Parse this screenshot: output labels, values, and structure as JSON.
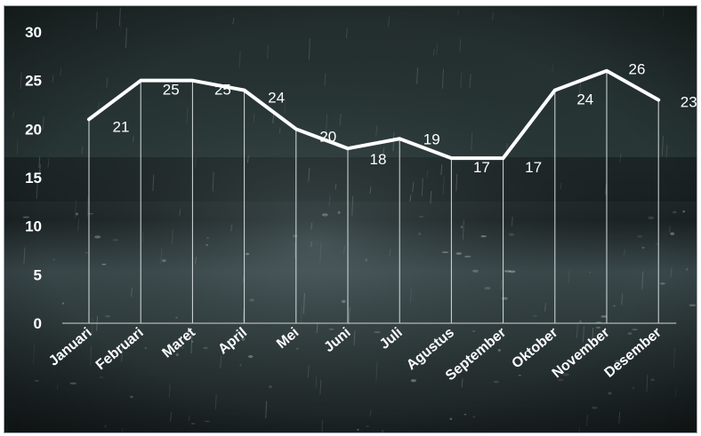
{
  "chart_data": {
    "type": "line",
    "categories": [
      "Januari",
      "Februari",
      "Maret",
      "April",
      "Mei",
      "Juni",
      "Juli",
      "Agustus",
      "September",
      "Oktober",
      "November",
      "Desember"
    ],
    "values": [
      21,
      25,
      25,
      24,
      20,
      18,
      19,
      17,
      17,
      24,
      26,
      23
    ],
    "y_ticks": [
      "0",
      "5",
      "10",
      "15",
      "20",
      "25",
      "30"
    ],
    "ylim": [
      0,
      30
    ],
    "title": "",
    "xlabel": "",
    "ylabel": "",
    "grid": "vertical drop lines",
    "line_color": "#ffffff",
    "background": "rainy water photo"
  }
}
